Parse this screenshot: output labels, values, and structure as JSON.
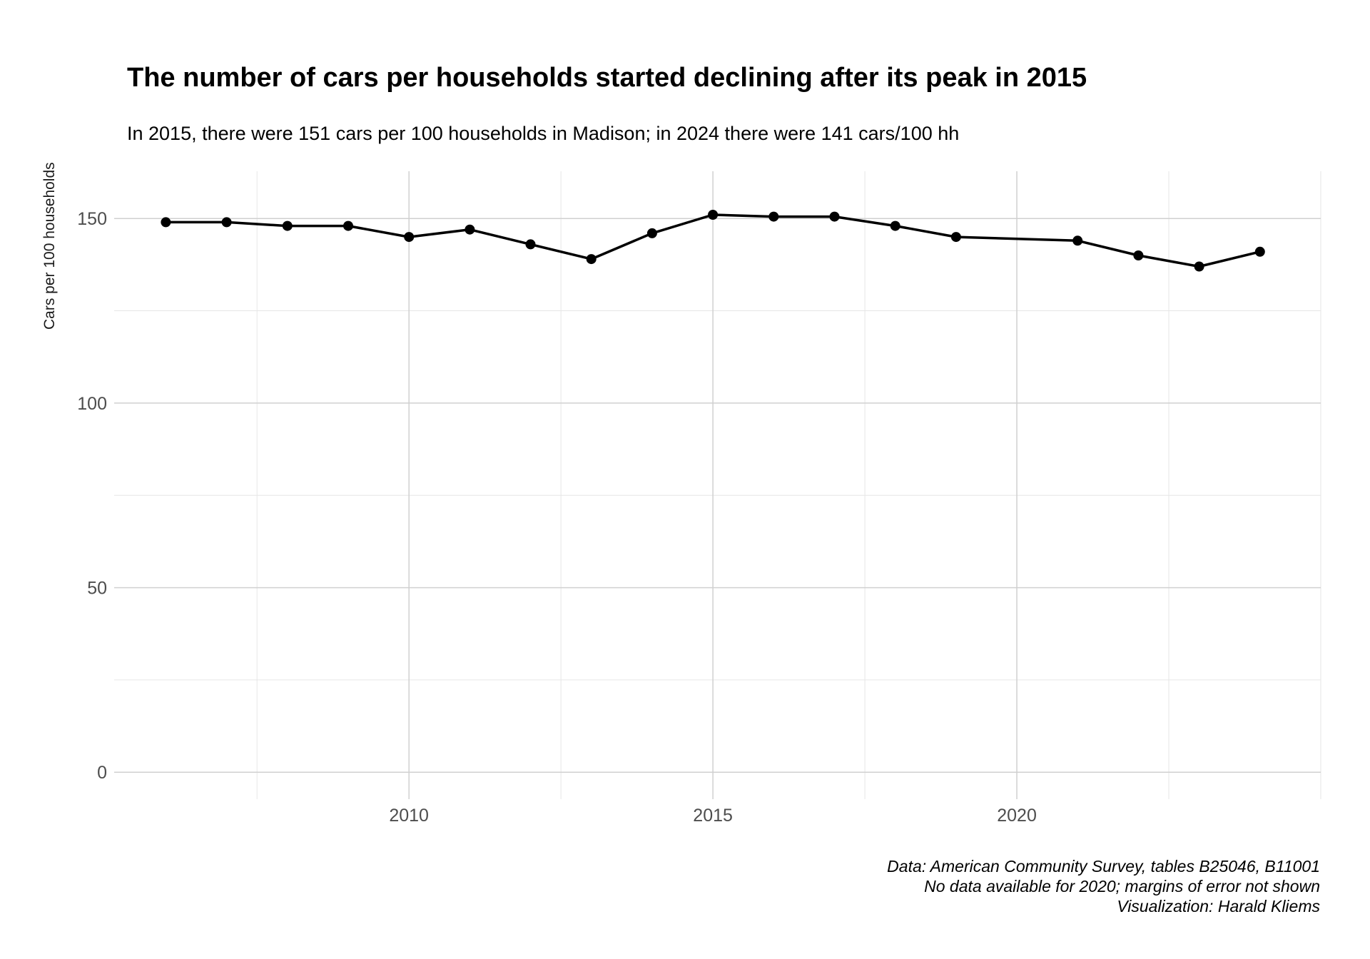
{
  "header": {
    "title": "The number of cars per households started declining after its peak in 2015",
    "subtitle": "In 2015, there were 151 cars per 100 households in Madison; in 2024 there were 141 cars/100 hh"
  },
  "caption": {
    "lines": [
      "Data: American Community Survey, tables B25046, B11001",
      "No data available for 2020; margins of error not shown",
      "Visualization: Harald Kliems"
    ]
  },
  "chart_data": {
    "type": "line",
    "title": "The number of cars per households started declining after its peak in 2015",
    "subtitle": "In 2015, there were 151 cars per 100 households in Madison; in 2024 there were 141 cars/100 hh",
    "xlabel": "",
    "ylabel": "Cars per 100 households",
    "x": [
      2006,
      2007,
      2008,
      2009,
      2010,
      2011,
      2012,
      2013,
      2014,
      2015,
      2016,
      2017,
      2018,
      2019,
      2020,
      2021,
      2022,
      2023,
      2024
    ],
    "values": [
      149,
      149,
      148,
      148,
      145,
      147,
      143,
      139,
      146,
      151,
      150.5,
      150.5,
      148,
      145,
      null,
      144,
      140,
      137,
      141
    ],
    "missing_years": [
      2020
    ],
    "x_ticks": [
      2010,
      2015,
      2020
    ],
    "x_minor_ticks": [
      2007.5,
      2012.5,
      2017.5,
      2022.5,
      2025
    ],
    "y_ticks": [
      0,
      50,
      100,
      150
    ],
    "y_minor_ticks": [
      25,
      75,
      125
    ],
    "xlim": [
      2005.15,
      2025.0
    ],
    "ylim": [
      -7.3,
      162.8
    ],
    "grid": true,
    "legend": false,
    "line_color": "#000000",
    "point_color": "#000000",
    "major_grid_color": "#d0d0d0",
    "minor_grid_color": "#e6e6e6",
    "tick_label_color": "#4d4d4d"
  }
}
